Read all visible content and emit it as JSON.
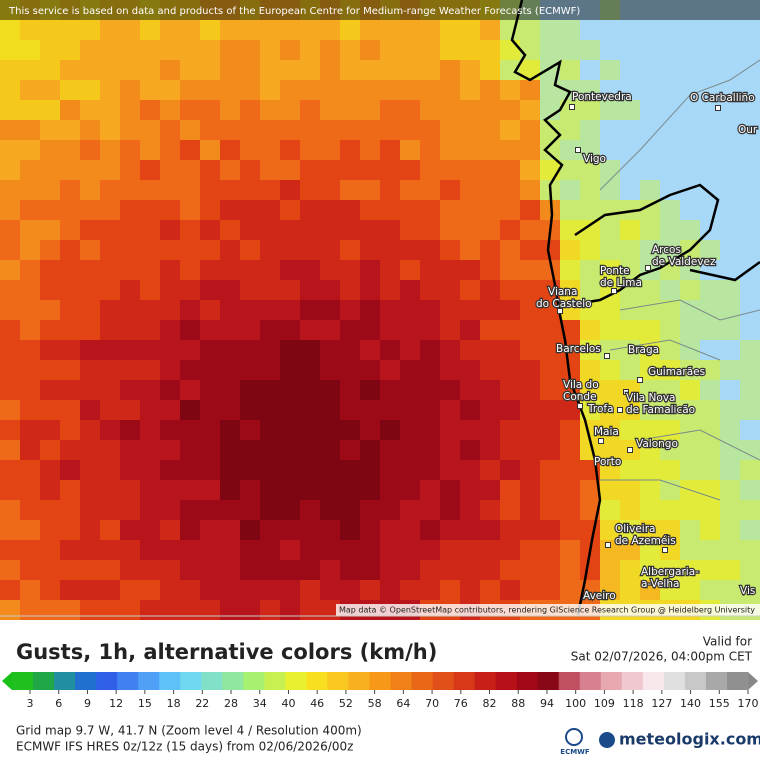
{
  "header": {
    "notice": "This service is based on data and products of the European Centre for Medium-range Weather Forecasts (ECMWF)"
  },
  "map": {
    "attribution": "Map data © OpenStreetMap contributors, rendering GIScience Research Group @ Heidelberg University",
    "places": [
      {
        "lines": [
          "Pontevedra"
        ]
      },
      {
        "lines": [
          "O Carballiño"
        ]
      },
      {
        "lines": [
          "Our"
        ]
      },
      {
        "lines": [
          "Vigo"
        ]
      },
      {
        "lines": [
          "Arcos",
          "de Valdevez"
        ]
      },
      {
        "lines": [
          "Ponte",
          "de Lima"
        ]
      },
      {
        "lines": [
          "Viana",
          "do Castelo"
        ]
      },
      {
        "lines": [
          "Barcelos"
        ]
      },
      {
        "lines": [
          "Braga"
        ]
      },
      {
        "lines": [
          "Guimarães"
        ]
      },
      {
        "lines": [
          "Vila do",
          "Conde"
        ]
      },
      {
        "lines": [
          "Vila Nova",
          "de Famalicão"
        ]
      },
      {
        "lines": [
          "Trofa"
        ]
      },
      {
        "lines": [
          "Maia"
        ]
      },
      {
        "lines": [
          "Valongo"
        ]
      },
      {
        "lines": [
          "Porto"
        ]
      },
      {
        "lines": [
          "Oliveira",
          "de Azeméis"
        ]
      },
      {
        "lines": [
          "Albergaria-",
          "a-Velha"
        ]
      },
      {
        "lines": [
          "Aveiro"
        ]
      },
      {
        "lines": [
          "Vis"
        ]
      }
    ]
  },
  "legend": {
    "title": "Gusts, 1h, alternative colors (km/h)",
    "valid_label": "Valid for",
    "valid_time": "Sat 02/07/2026, 04:00pm CET",
    "ticks": [
      3,
      6,
      9,
      12,
      15,
      18,
      22,
      28,
      34,
      40,
      46,
      52,
      58,
      64,
      70,
      76,
      82,
      88,
      94,
      100,
      109,
      118,
      127,
      140,
      155,
      170
    ]
  },
  "footer": {
    "grid_info": "Grid map 9.7 W, 41.7 N (Zoom level 4 / Resolution 400m)",
    "model": "ECMWF IFS HRES 0z/12z (15 days) from 02/06/2026/00z",
    "ecmwf": "ECMWF",
    "brand": "meteologix.com"
  }
}
